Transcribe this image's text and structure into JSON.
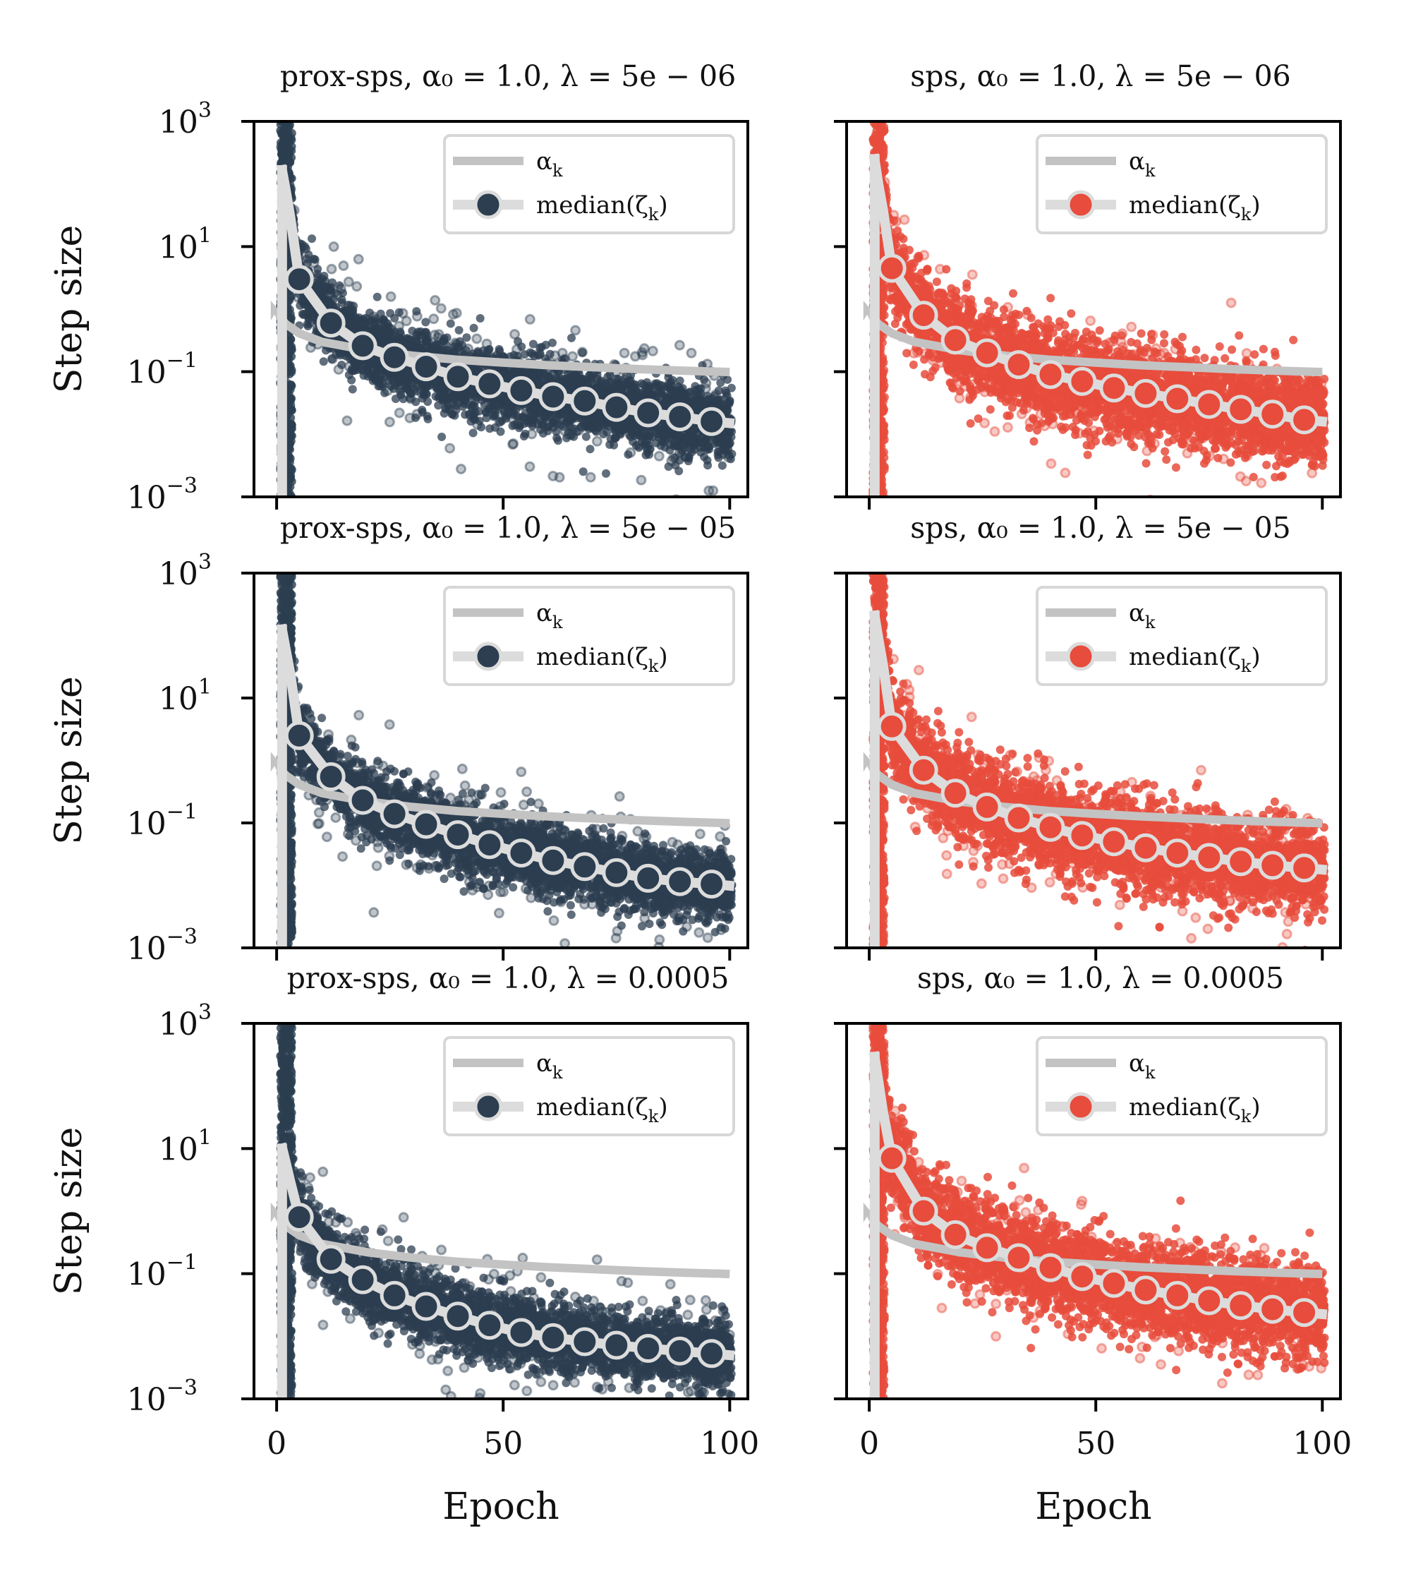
{
  "figure": {
    "colors": {
      "prox_sps": "#2c3e50",
      "sps": "#e74c3c",
      "alpha_line": "#c3c3c3",
      "median_line": "#dcdcdc"
    },
    "ylabel": "Step size",
    "xlabel": "Epoch",
    "ytick_labels": [
      {
        "base": "10",
        "exp": "3"
      },
      {
        "base": "10",
        "exp": "1"
      },
      {
        "base": "10",
        "exp": "−1"
      },
      {
        "base": "10",
        "exp": "−3"
      }
    ],
    "xtick_labels": [
      "0",
      "50",
      "100"
    ],
    "legend": {
      "alpha": {
        "text": "α",
        "sub": "k"
      },
      "median": {
        "text": "median(ζ",
        "sub": "k",
        "close": ")"
      }
    }
  },
  "chart_data": [
    {
      "type": "scatter",
      "method": "prox-sps",
      "title": "prox-sps, α₀ = 1.0, λ = 5e − 06",
      "xlabel": "",
      "ylabel": "Step size",
      "xlim": [
        -5,
        104
      ],
      "ylim": [
        0.001,
        1000
      ],
      "yscale": "log",
      "alpha0": 1.0,
      "lambda": 5e-06,
      "series": [
        {
          "name": "α_k",
          "x": [
            0,
            1,
            2,
            5,
            10,
            20,
            30,
            40,
            50,
            60,
            70,
            80,
            90,
            100
          ],
          "y": [
            1.0,
            0.7,
            0.58,
            0.41,
            0.3,
            0.22,
            0.18,
            0.155,
            0.14,
            0.127,
            0.118,
            0.11,
            0.104,
            0.099
          ]
        },
        {
          "name": "median(ζ_k)",
          "x": [
            5,
            12,
            19,
            26,
            33,
            40,
            47,
            54,
            61,
            68,
            75,
            82,
            89,
            96
          ],
          "y": [
            3.0,
            0.6,
            0.26,
            0.17,
            0.12,
            0.083,
            0.064,
            0.05,
            0.04,
            0.034,
            0.027,
            0.022,
            0.019,
            0.016
          ]
        }
      ],
      "median_curve": {
        "x": [
          1,
          2,
          3,
          5
        ],
        "y": [
          200,
          80,
          30,
          3.0
        ]
      }
    },
    {
      "type": "scatter",
      "method": "sps",
      "title": "sps, α₀ = 1.0, λ = 5e − 06",
      "xlabel": "",
      "ylabel": "",
      "xlim": [
        -5,
        104
      ],
      "ylim": [
        0.001,
        1000
      ],
      "yscale": "log",
      "alpha0": 1.0,
      "lambda": 5e-06,
      "series": [
        {
          "name": "α_k",
          "x": [
            0,
            1,
            2,
            5,
            10,
            20,
            30,
            40,
            50,
            60,
            70,
            80,
            90,
            100
          ],
          "y": [
            1.0,
            0.7,
            0.58,
            0.41,
            0.3,
            0.22,
            0.18,
            0.155,
            0.14,
            0.127,
            0.118,
            0.11,
            0.104,
            0.099
          ]
        },
        {
          "name": "median(ζ_k)",
          "x": [
            5,
            12,
            19,
            26,
            33,
            40,
            47,
            54,
            61,
            68,
            75,
            82,
            89,
            96
          ],
          "y": [
            4.5,
            0.8,
            0.32,
            0.2,
            0.13,
            0.09,
            0.07,
            0.055,
            0.045,
            0.037,
            0.03,
            0.025,
            0.021,
            0.017
          ]
        }
      ],
      "median_curve": {
        "x": [
          1,
          2,
          3,
          5
        ],
        "y": [
          300,
          100,
          40,
          4.5
        ]
      }
    },
    {
      "type": "scatter",
      "method": "prox-sps",
      "title": "prox-sps, α₀ = 1.0, λ = 5e − 05",
      "xlabel": "",
      "ylabel": "Step size",
      "xlim": [
        -5,
        104
      ],
      "ylim": [
        0.001,
        1000
      ],
      "yscale": "log",
      "alpha0": 1.0,
      "lambda": 5e-05,
      "series": [
        {
          "name": "α_k",
          "x": [
            0,
            1,
            2,
            5,
            10,
            20,
            30,
            40,
            50,
            60,
            70,
            80,
            90,
            100
          ],
          "y": [
            1.0,
            0.7,
            0.58,
            0.41,
            0.3,
            0.22,
            0.18,
            0.155,
            0.14,
            0.127,
            0.118,
            0.11,
            0.104,
            0.099
          ]
        },
        {
          "name": "median(ζ_k)",
          "x": [
            5,
            12,
            19,
            26,
            33,
            40,
            47,
            54,
            61,
            68,
            75,
            82,
            89,
            96
          ],
          "y": [
            2.5,
            0.55,
            0.23,
            0.14,
            0.095,
            0.065,
            0.045,
            0.033,
            0.025,
            0.02,
            0.016,
            0.013,
            0.0115,
            0.0105
          ]
        }
      ],
      "median_curve": {
        "x": [
          1,
          2,
          3,
          5
        ],
        "y": [
          150,
          60,
          25,
          2.5
        ]
      }
    },
    {
      "type": "scatter",
      "method": "sps",
      "title": "sps, α₀ = 1.0, λ = 5e − 05",
      "xlabel": "",
      "ylabel": "",
      "xlim": [
        -5,
        104
      ],
      "ylim": [
        0.001,
        1000
      ],
      "yscale": "log",
      "alpha0": 1.0,
      "lambda": 5e-05,
      "series": [
        {
          "name": "α_k",
          "x": [
            0,
            1,
            2,
            5,
            10,
            20,
            30,
            40,
            50,
            60,
            70,
            80,
            90,
            100
          ],
          "y": [
            1.0,
            0.7,
            0.58,
            0.41,
            0.3,
            0.22,
            0.18,
            0.155,
            0.14,
            0.127,
            0.118,
            0.11,
            0.104,
            0.099
          ]
        },
        {
          "name": "median(ζ_k)",
          "x": [
            5,
            12,
            19,
            26,
            33,
            40,
            47,
            54,
            61,
            68,
            75,
            82,
            89,
            96
          ],
          "y": [
            3.5,
            0.7,
            0.3,
            0.18,
            0.12,
            0.085,
            0.063,
            0.05,
            0.04,
            0.033,
            0.028,
            0.024,
            0.021,
            0.019
          ]
        }
      ],
      "median_curve": {
        "x": [
          1,
          2,
          3,
          5
        ],
        "y": [
          250,
          90,
          35,
          3.5
        ]
      }
    },
    {
      "type": "scatter",
      "method": "prox-sps",
      "title": "prox-sps, α₀ = 1.0, λ = 0.0005",
      "xlabel": "Epoch",
      "ylabel": "Step size",
      "xlim": [
        -5,
        104
      ],
      "ylim": [
        0.001,
        1000
      ],
      "yscale": "log",
      "alpha0": 1.0,
      "lambda": 0.0005,
      "series": [
        {
          "name": "α_k",
          "x": [
            0,
            1,
            2,
            5,
            10,
            20,
            30,
            40,
            50,
            60,
            70,
            80,
            90,
            100
          ],
          "y": [
            1.0,
            0.7,
            0.58,
            0.41,
            0.3,
            0.22,
            0.18,
            0.155,
            0.14,
            0.127,
            0.118,
            0.11,
            0.104,
            0.099
          ]
        },
        {
          "name": "median(ζ_k)",
          "x": [
            5,
            12,
            19,
            26,
            33,
            40,
            47,
            54,
            61,
            68,
            75,
            82,
            89,
            96
          ],
          "y": [
            0.8,
            0.17,
            0.08,
            0.045,
            0.03,
            0.021,
            0.015,
            0.0115,
            0.0095,
            0.0082,
            0.0072,
            0.0064,
            0.0058,
            0.0053
          ]
        }
      ],
      "median_curve": {
        "x": [
          1,
          2,
          3,
          5
        ],
        "y": [
          12,
          6,
          3,
          0.8
        ]
      }
    },
    {
      "type": "scatter",
      "method": "sps",
      "title": "sps, α₀ = 1.0, λ = 0.0005",
      "xlabel": "Epoch",
      "ylabel": "",
      "xlim": [
        -5,
        104
      ],
      "ylim": [
        0.001,
        1000
      ],
      "yscale": "log",
      "alpha0": 1.0,
      "lambda": 0.0005,
      "series": [
        {
          "name": "α_k",
          "x": [
            0,
            1,
            2,
            5,
            10,
            20,
            30,
            40,
            50,
            60,
            70,
            80,
            90,
            100
          ],
          "y": [
            1.0,
            0.7,
            0.58,
            0.41,
            0.3,
            0.22,
            0.18,
            0.155,
            0.14,
            0.127,
            0.118,
            0.11,
            0.104,
            0.099
          ]
        },
        {
          "name": "median(ζ_k)",
          "x": [
            5,
            12,
            19,
            26,
            33,
            40,
            47,
            54,
            61,
            68,
            75,
            82,
            89,
            96
          ],
          "y": [
            7.0,
            1.0,
            0.42,
            0.26,
            0.18,
            0.125,
            0.09,
            0.07,
            0.055,
            0.045,
            0.037,
            0.031,
            0.027,
            0.024
          ]
        }
      ],
      "median_curve": {
        "x": [
          1,
          2,
          3,
          5
        ],
        "y": [
          350,
          120,
          40,
          7.0
        ]
      }
    }
  ]
}
